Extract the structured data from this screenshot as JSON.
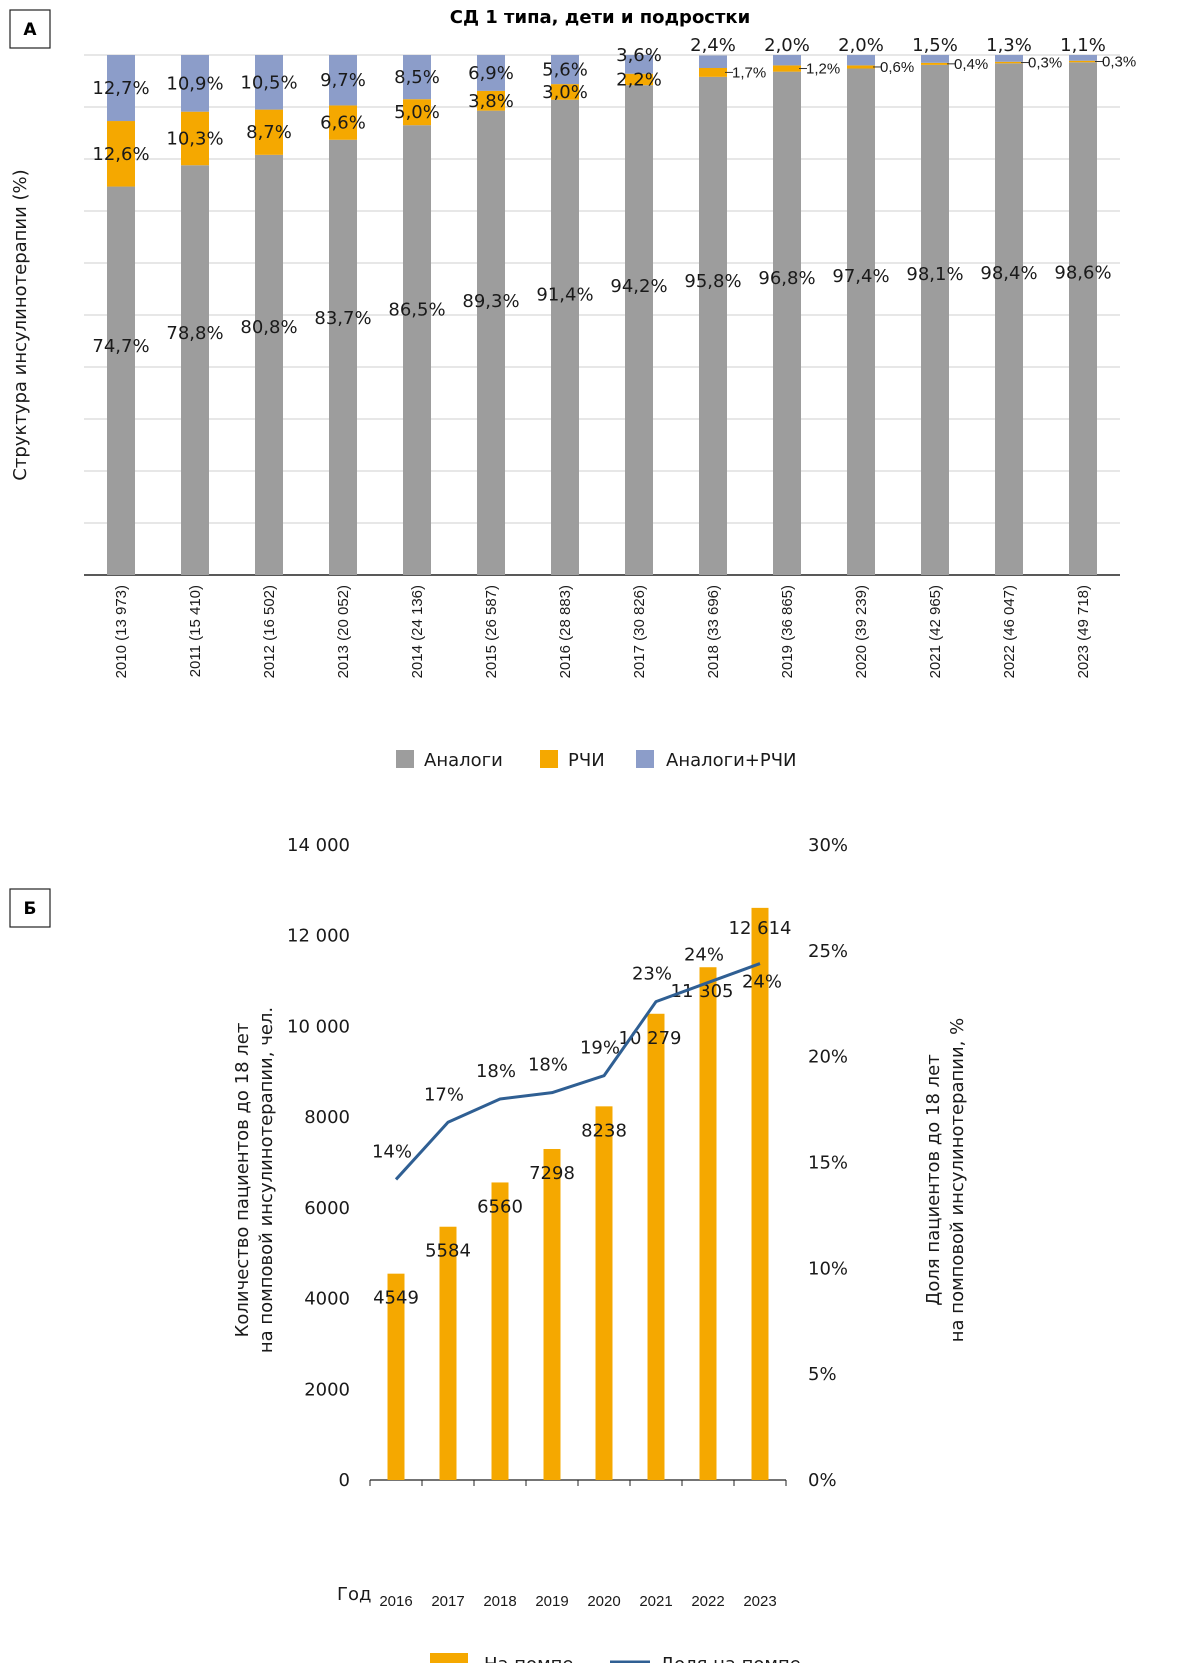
{
  "panel_a": {
    "label": "А",
    "title": "СД 1 типа, дети и подростки",
    "ylabel": "Структура инсулинотерапии (%)",
    "legend": [
      "Аналоги",
      "РЧИ",
      "Аналоги+РЧИ"
    ]
  },
  "panel_b": {
    "label": "Б",
    "xlabel": "Год",
    "ylabel_left_1": "Количество пациентов до 18 лет",
    "ylabel_left_2": "на помповой инсулинотерапии, чел.",
    "ylabel_right_1": "Доля пациентов до 18 лет",
    "ylabel_right_2": "на помповой инсулинотерапии, %",
    "legend": [
      "На помпе",
      "Доля на помпе"
    ]
  },
  "colors": {
    "analogs": "#9d9d9d",
    "rchi": "#f5a800",
    "mixed": "#8c9dc9",
    "pump_bar": "#f5a800",
    "pump_line": "#2f5f93"
  },
  "chart_data": [
    {
      "type": "bar",
      "stacked": true,
      "title": "СД 1 типа, дети и подростки",
      "ylabel": "Структура инсулинотерапии (%)",
      "categories": [
        "2010 (13 973)",
        "2011 (15 410)",
        "2012 (16 502)",
        "2013 (20 052)",
        "2014 (24 136)",
        "2015 (26 587)",
        "2016 (28 883)",
        "2017 (30 826)",
        "2018 (33 696)",
        "2019 (36 865)",
        "2020 (39 239)",
        "2021 (42 965)",
        "2022 (46 047)",
        "2023 (49 718)"
      ],
      "series": [
        {
          "name": "Аналоги",
          "values": [
            74.7,
            78.8,
            80.8,
            83.7,
            86.5,
            89.3,
            91.4,
            94.2,
            95.8,
            96.8,
            97.4,
            98.1,
            98.4,
            98.6
          ],
          "labels": [
            "74,7%",
            "78,8%",
            "80,8%",
            "83,7%",
            "86,5%",
            "89,3%",
            "91,4%",
            "94,2%",
            "95,8%",
            "96,8%",
            "97,4%",
            "98,1%",
            "98,4%",
            "98,6%"
          ]
        },
        {
          "name": "РЧИ",
          "values": [
            12.6,
            10.3,
            8.7,
            6.6,
            5.0,
            3.8,
            3.0,
            2.2,
            1.7,
            1.2,
            0.6,
            0.4,
            0.3,
            0.3
          ],
          "labels": [
            "12,6%",
            "10,3%",
            "8,7%",
            "6,6%",
            "5,0%",
            "3,8%",
            "3,0%",
            "2,2%",
            "1,7%",
            "1,2%",
            "0,6%",
            "0,4%",
            "0,3%",
            "0,3%"
          ]
        },
        {
          "name": "Аналоги+РЧИ",
          "values": [
            12.7,
            10.9,
            10.5,
            9.7,
            8.5,
            6.9,
            5.6,
            3.6,
            2.4,
            2.0,
            2.0,
            1.5,
            1.3,
            1.1
          ],
          "labels": [
            "12,7%",
            "10,9%",
            "10,5%",
            "9,7%",
            "8,5%",
            "6,9%",
            "5,6%",
            "3,6%",
            "2,4%",
            "2,0%",
            "2,0%",
            "1,5%",
            "1,3%",
            "1,1%"
          ]
        }
      ],
      "ylim": [
        0,
        100
      ],
      "grid": true,
      "legend": "bottom"
    },
    {
      "type": "bar",
      "combo": "bar+line",
      "xlabel": "Год",
      "categories": [
        "2016",
        "2017",
        "2018",
        "2019",
        "2020",
        "2021",
        "2022",
        "2023"
      ],
      "series": [
        {
          "name": "На помпе",
          "type": "bar",
          "axis": "left",
          "values": [
            4549,
            5584,
            6560,
            7298,
            8238,
            10279,
            11305,
            12614
          ],
          "labels": [
            "4549",
            "5584",
            "6560",
            "7298",
            "8238",
            "10 279",
            "11 305",
            "12 614"
          ]
        },
        {
          "name": "Доля на помпе",
          "type": "line",
          "axis": "right",
          "values": [
            14.2,
            16.9,
            18.0,
            18.3,
            19.1,
            22.6,
            23.5,
            24.4
          ],
          "labels": [
            "14%",
            "17%",
            "18%",
            "18%",
            "19%",
            "23%",
            "24%",
            "24%"
          ]
        }
      ],
      "ylim_left": [
        0,
        14000
      ],
      "yticks_left": [
        "0",
        "2000",
        "4000",
        "6000",
        "8000",
        "10 000",
        "12 000",
        "14 000"
      ],
      "ylim_right": [
        0,
        30
      ],
      "yticks_right": [
        "0%",
        "5%",
        "10%",
        "15%",
        "20%",
        "25%",
        "30%"
      ],
      "legend": "bottom"
    }
  ]
}
